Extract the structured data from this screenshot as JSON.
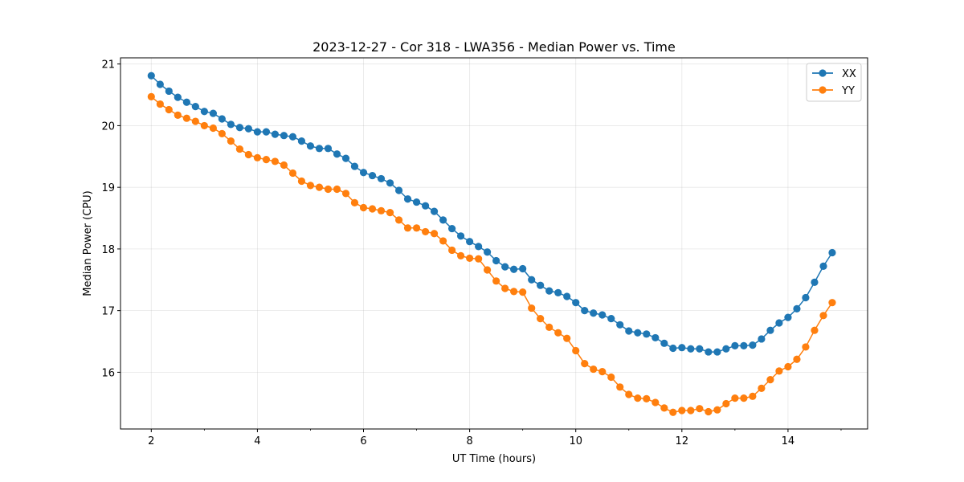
{
  "chart_data": {
    "type": "line",
    "title": "2023-12-27 - Cor 318 - LWA356 - Median Power vs. Time",
    "xlabel": "UT Time (hours)",
    "ylabel": "Median Power (CPU)",
    "xlim": [
      1.42,
      15.5
    ],
    "ylim": [
      15.08,
      21.1
    ],
    "xticks": [
      2,
      4,
      6,
      8,
      10,
      12,
      14
    ],
    "xtick_labels": [
      "2",
      "4",
      "6",
      "8",
      "10",
      "12",
      "14"
    ],
    "yticks": [
      16,
      17,
      18,
      19,
      20,
      21
    ],
    "ytick_labels": [
      "16",
      "17",
      "18",
      "19",
      "20",
      "21"
    ],
    "grid": true,
    "legend_position": "top-right",
    "x": [
      2.0,
      2.167,
      2.333,
      2.5,
      2.667,
      2.833,
      3.0,
      3.167,
      3.333,
      3.5,
      3.667,
      3.833,
      4.0,
      4.167,
      4.333,
      4.5,
      4.667,
      4.833,
      5.0,
      5.167,
      5.333,
      5.5,
      5.667,
      5.833,
      6.0,
      6.167,
      6.333,
      6.5,
      6.667,
      6.833,
      7.0,
      7.167,
      7.333,
      7.5,
      7.667,
      7.833,
      8.0,
      8.167,
      8.333,
      8.5,
      8.667,
      8.833,
      9.0,
      9.167,
      9.333,
      9.5,
      9.667,
      9.833,
      10.0,
      10.167,
      10.333,
      10.5,
      10.667,
      10.833,
      11.0,
      11.167,
      11.333,
      11.5,
      11.667,
      11.833,
      12.0,
      12.167,
      12.333,
      12.5,
      12.667,
      12.833,
      13.0,
      13.167,
      13.333,
      13.5,
      13.667,
      13.833,
      14.0,
      14.167,
      14.333,
      14.5,
      14.667,
      14.833
    ],
    "series": [
      {
        "name": "XX",
        "color": "#1f77b4",
        "values": [
          20.81,
          20.67,
          20.56,
          20.46,
          20.38,
          20.31,
          20.23,
          20.2,
          20.11,
          20.02,
          19.97,
          19.95,
          19.9,
          19.9,
          19.86,
          19.84,
          19.82,
          19.75,
          19.67,
          19.63,
          19.63,
          19.54,
          19.47,
          19.34,
          19.24,
          19.19,
          19.14,
          19.07,
          18.95,
          18.81,
          18.76,
          18.7,
          18.61,
          18.47,
          18.33,
          18.21,
          18.12,
          18.04,
          17.95,
          17.81,
          17.71,
          17.67,
          17.68,
          17.5,
          17.41,
          17.32,
          17.29,
          17.23,
          17.13,
          17.0,
          16.96,
          16.93,
          16.87,
          16.77,
          16.67,
          16.64,
          16.62,
          16.56,
          16.47,
          16.39,
          16.4,
          16.38,
          16.38,
          16.33,
          16.33,
          16.38,
          16.43,
          16.43,
          16.44,
          16.54,
          16.68,
          16.8,
          16.89,
          17.03,
          17.21,
          17.46,
          17.72,
          17.94
        ]
      },
      {
        "name": "YY",
        "color": "#ff7f0e",
        "values": [
          20.47,
          20.35,
          20.26,
          20.17,
          20.12,
          20.07,
          20.0,
          19.96,
          19.87,
          19.75,
          19.62,
          19.53,
          19.48,
          19.45,
          19.42,
          19.36,
          19.23,
          19.1,
          19.03,
          19.0,
          18.97,
          18.97,
          18.9,
          18.75,
          18.67,
          18.65,
          18.62,
          18.59,
          18.47,
          18.34,
          18.34,
          18.28,
          18.25,
          18.13,
          17.98,
          17.89,
          17.85,
          17.84,
          17.66,
          17.48,
          17.36,
          17.31,
          17.3,
          17.04,
          16.87,
          16.73,
          16.64,
          16.55,
          16.35,
          16.14,
          16.05,
          16.01,
          15.92,
          15.76,
          15.64,
          15.58,
          15.57,
          15.51,
          15.42,
          15.35,
          15.38,
          15.38,
          15.41,
          15.36,
          15.39,
          15.49,
          15.58,
          15.58,
          15.61,
          15.74,
          15.88,
          16.02,
          16.09,
          16.21,
          16.41,
          16.68,
          16.92,
          17.13
        ]
      }
    ]
  }
}
